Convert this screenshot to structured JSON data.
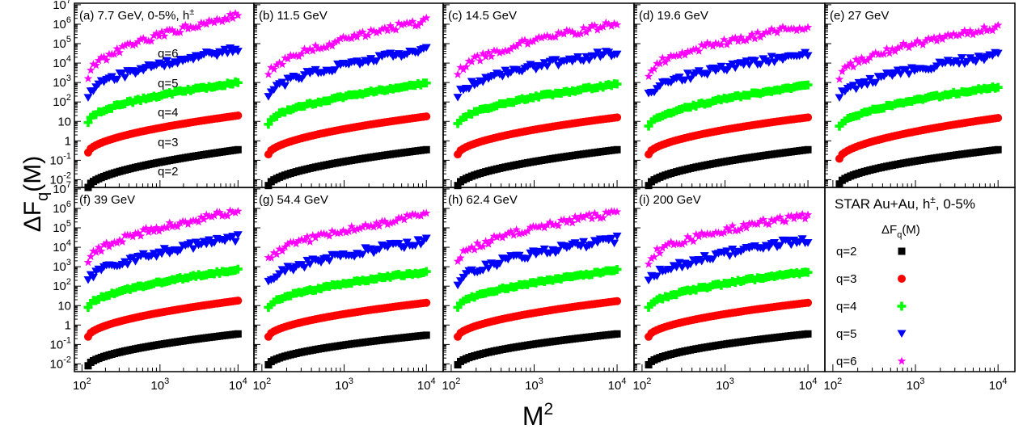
{
  "figure": {
    "y_label": "ΔF",
    "y_label_sub": "q",
    "y_label_tail": "(M)",
    "x_label": "M",
    "x_label_sup": "2"
  },
  "x_ticks": [
    {
      "base": "10",
      "exp": "2",
      "value": 100
    },
    {
      "base": "10",
      "exp": "3",
      "value": 1000
    },
    {
      "base": "10",
      "exp": "4",
      "value": 10000
    }
  ],
  "y_ticks": [
    {
      "base": "10",
      "exp": "-2",
      "value": 0.01
    },
    {
      "base": "10",
      "exp": "-1",
      "value": 0.1
    },
    {
      "base": "1",
      "exp": "",
      "value": 1
    },
    {
      "base": "10",
      "exp": "",
      "value": 10
    },
    {
      "base": "10",
      "exp": "2",
      "value": 100
    },
    {
      "base": "10",
      "exp": "3",
      "value": 1000
    },
    {
      "base": "10",
      "exp": "4",
      "value": 10000
    },
    {
      "base": "10",
      "exp": "5",
      "value": 100000
    },
    {
      "base": "10",
      "exp": "6",
      "value": 1000000
    },
    {
      "base": "10",
      "exp": "7",
      "value": 10000000
    }
  ],
  "series_style": [
    {
      "q": "q=2",
      "color": "#000000",
      "marker": "square"
    },
    {
      "q": "q=3",
      "color": "#ff0000",
      "marker": "circle"
    },
    {
      "q": "q=4",
      "color": "#00ff00",
      "marker": "cross"
    },
    {
      "q": "q=5",
      "color": "#0000ff",
      "marker": "triangle-down"
    },
    {
      "q": "q=6",
      "color": "#ff00ff",
      "marker": "star"
    }
  ],
  "legend": {
    "title": "STAR Au+Au, h",
    "title_sup": "±",
    "title_tail": ", 0-5%",
    "subtitle": "ΔF",
    "subtitle_sub": "q",
    "subtitle_tail": "(M)",
    "entries": [
      "q=2",
      "q=3",
      "q=4",
      "q=5",
      "q=6"
    ]
  },
  "chart_data": [
    {
      "type": "scatter",
      "panel": "(a) 7.7 GeV, 0-5%, h",
      "label_sup": "±",
      "xscale": "log",
      "yscale": "log",
      "xlim": [
        80,
        16000
      ],
      "ylim": [
        0.004,
        12000000
      ],
      "curve_labels": [
        "q=6",
        "q=5",
        "q=4",
        "q=3",
        "q=2"
      ],
      "series": [
        {
          "name": "q=2",
          "start": 0.004,
          "end": 0.35
        },
        {
          "name": "q=3",
          "start": 0.25,
          "end": 20
        },
        {
          "name": "q=4",
          "start": 10,
          "end": 1000
        },
        {
          "name": "q=5",
          "start": 200,
          "end": 50000
        },
        {
          "name": "q=6",
          "start": 2000,
          "end": 3000000
        }
      ]
    },
    {
      "type": "scatter",
      "panel": "(b) 11.5 GeV",
      "xscale": "log",
      "yscale": "log",
      "xlim": [
        80,
        16000
      ],
      "ylim": [
        0.004,
        12000000
      ],
      "series": [
        {
          "name": "q=2",
          "start": 0.005,
          "end": 0.35
        },
        {
          "name": "q=3",
          "start": 0.2,
          "end": 18
        },
        {
          "name": "q=4",
          "start": 8,
          "end": 900
        },
        {
          "name": "q=5",
          "start": 200,
          "end": 45000
        },
        {
          "name": "q=6",
          "start": 2000,
          "end": 1500000
        }
      ]
    },
    {
      "type": "scatter",
      "panel": "(c) 14.5 GeV",
      "xscale": "log",
      "yscale": "log",
      "xlim": [
        80,
        16000
      ],
      "ylim": [
        0.004,
        12000000
      ],
      "series": [
        {
          "name": "q=2",
          "start": 0.005,
          "end": 0.35
        },
        {
          "name": "q=3",
          "start": 0.2,
          "end": 16
        },
        {
          "name": "q=4",
          "start": 8,
          "end": 800
        },
        {
          "name": "q=5",
          "start": 200,
          "end": 35000
        },
        {
          "name": "q=6",
          "start": 2500,
          "end": 1000000
        }
      ]
    },
    {
      "type": "scatter",
      "panel": "(d) 19.6 GeV",
      "xscale": "log",
      "yscale": "log",
      "xlim": [
        80,
        16000
      ],
      "ylim": [
        0.004,
        12000000
      ],
      "series": [
        {
          "name": "q=2",
          "start": 0.005,
          "end": 0.35
        },
        {
          "name": "q=3",
          "start": 0.2,
          "end": 16
        },
        {
          "name": "q=4",
          "start": 6,
          "end": 700
        },
        {
          "name": "q=5",
          "start": 200,
          "end": 30000
        },
        {
          "name": "q=6",
          "start": 3000,
          "end": 800000
        }
      ]
    },
    {
      "type": "scatter",
      "panel": "(e) 27 GeV",
      "xscale": "log",
      "yscale": "log",
      "xlim": [
        80,
        16000
      ],
      "ylim": [
        0.004,
        12000000
      ],
      "series": [
        {
          "name": "q=2",
          "start": 0.006,
          "end": 0.35
        },
        {
          "name": "q=3",
          "start": 0.12,
          "end": 15
        },
        {
          "name": "q=4",
          "start": 5,
          "end": 600
        },
        {
          "name": "q=5",
          "start": 150,
          "end": 25000
        },
        {
          "name": "q=6",
          "start": 2000,
          "end": 700000
        }
      ]
    },
    {
      "type": "scatter",
      "panel": "(f) 39 GeV",
      "xscale": "log",
      "yscale": "log",
      "xlim": [
        80,
        16000
      ],
      "ylim": [
        0.004,
        12000000
      ],
      "series": [
        {
          "name": "q=2",
          "start": 0.008,
          "end": 0.35
        },
        {
          "name": "q=3",
          "start": 0.25,
          "end": 18
        },
        {
          "name": "q=4",
          "start": 8,
          "end": 700
        },
        {
          "name": "q=5",
          "start": 150,
          "end": 30000
        },
        {
          "name": "q=6",
          "start": 2000,
          "end": 700000
        }
      ]
    },
    {
      "type": "scatter",
      "panel": "(g) 54.4 GeV",
      "xscale": "log",
      "yscale": "log",
      "xlim": [
        80,
        16000
      ],
      "ylim": [
        0.004,
        12000000
      ],
      "series": [
        {
          "name": "q=2",
          "start": 0.009,
          "end": 0.3
        },
        {
          "name": "q=3",
          "start": 0.25,
          "end": 14
        },
        {
          "name": "q=4",
          "start": 8,
          "end": 550
        },
        {
          "name": "q=5",
          "start": 150,
          "end": 20000
        },
        {
          "name": "q=6",
          "start": 2000,
          "end": 450000
        }
      ]
    },
    {
      "type": "scatter",
      "panel": "(h) 62.4 GeV",
      "xscale": "log",
      "yscale": "log",
      "xlim": [
        80,
        16000
      ],
      "ylim": [
        0.004,
        12000000
      ],
      "series": [
        {
          "name": "q=2",
          "start": 0.009,
          "end": 0.35
        },
        {
          "name": "q=3",
          "start": 0.25,
          "end": 17
        },
        {
          "name": "q=4",
          "start": 8,
          "end": 650
        },
        {
          "name": "q=5",
          "start": 150,
          "end": 25000
        },
        {
          "name": "q=6",
          "start": 2000,
          "end": 650000
        }
      ]
    },
    {
      "type": "scatter",
      "panel": "(i) 200 GeV",
      "xscale": "log",
      "yscale": "log",
      "xlim": [
        80,
        16000
      ],
      "ylim": [
        0.004,
        12000000
      ],
      "series": [
        {
          "name": "q=2",
          "start": 0.009,
          "end": 0.35
        },
        {
          "name": "q=3",
          "start": 0.25,
          "end": 14
        },
        {
          "name": "q=4",
          "start": 8,
          "end": 550
        },
        {
          "name": "q=5",
          "start": 150,
          "end": 25000
        },
        {
          "name": "q=6",
          "start": 2000,
          "end": 450000
        }
      ]
    }
  ]
}
